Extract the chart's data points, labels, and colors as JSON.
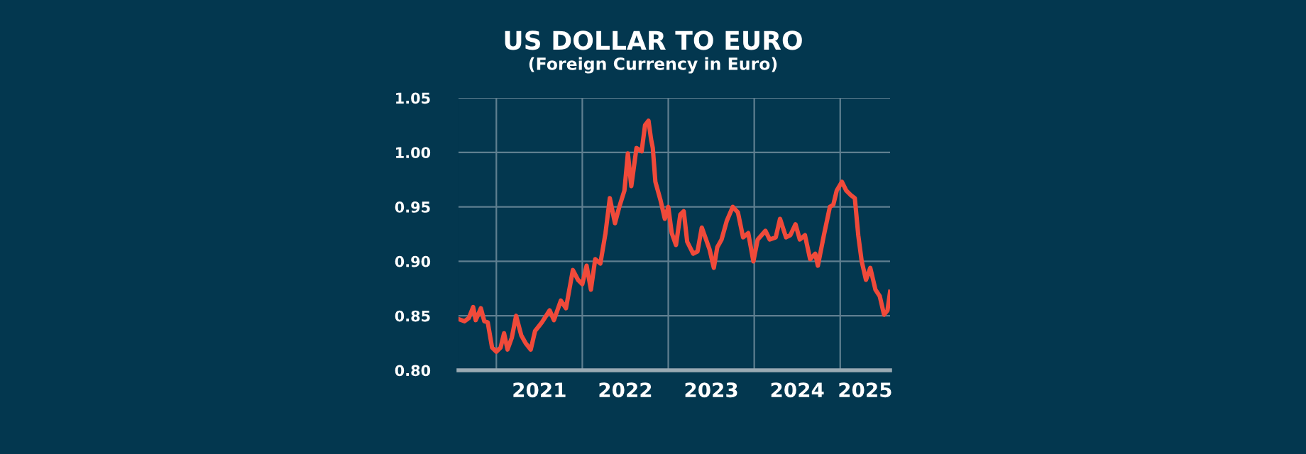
{
  "chart_data": {
    "type": "line",
    "title": "US DOLLAR TO EURO",
    "subtitle": "(Foreign Currency in Euro)",
    "x": [
      2020.56,
      2020.63,
      2020.68,
      2020.73,
      2020.76,
      2020.82,
      2020.86,
      2020.9,
      2020.95,
      2021.0,
      2021.05,
      2021.09,
      2021.13,
      2021.18,
      2021.23,
      2021.29,
      2021.34,
      2021.4,
      2021.45,
      2021.53,
      2021.62,
      2021.67,
      2021.75,
      2021.81,
      2021.89,
      2021.95,
      2022.0,
      2022.05,
      2022.1,
      2022.15,
      2022.21,
      2022.27,
      2022.32,
      2022.38,
      2022.43,
      2022.49,
      2022.53,
      2022.57,
      2022.63,
      2022.69,
      2022.73,
      2022.77,
      2022.8,
      2022.82,
      2022.85,
      2022.91,
      2022.96,
      2023.0,
      2023.04,
      2023.09,
      2023.14,
      2023.18,
      2023.22,
      2023.29,
      2023.34,
      2023.39,
      2023.44,
      2023.48,
      2023.53,
      2023.57,
      2023.62,
      2023.68,
      2023.75,
      2023.81,
      2023.87,
      2023.93,
      2023.99,
      2024.04,
      2024.13,
      2024.18,
      2024.25,
      2024.3,
      2024.37,
      2024.42,
      2024.48,
      2024.53,
      2024.59,
      2024.65,
      2024.71,
      2024.74,
      2024.81,
      2024.88,
      2024.92,
      2024.96,
      2025.02,
      2025.07,
      2025.12,
      2025.17,
      2025.21,
      2025.25,
      2025.3,
      2025.35,
      2025.41,
      2025.46,
      2025.51,
      2025.55,
      2025.58
    ],
    "series": [
      {
        "color": "#f04a3a",
        "values": [
          0.847,
          0.845,
          0.848,
          0.858,
          0.846,
          0.857,
          0.845,
          0.844,
          0.821,
          0.817,
          0.821,
          0.834,
          0.819,
          0.83,
          0.85,
          0.832,
          0.825,
          0.819,
          0.836,
          0.844,
          0.855,
          0.846,
          0.864,
          0.857,
          0.892,
          0.883,
          0.879,
          0.896,
          0.874,
          0.902,
          0.898,
          0.926,
          0.958,
          0.935,
          0.95,
          0.965,
          0.999,
          0.969,
          1.004,
          1.001,
          1.025,
          1.029,
          1.012,
          1.004,
          0.973,
          0.956,
          0.939,
          0.95,
          0.926,
          0.915,
          0.943,
          0.946,
          0.918,
          0.907,
          0.909,
          0.931,
          0.92,
          0.911,
          0.894,
          0.913,
          0.92,
          0.937,
          0.95,
          0.945,
          0.922,
          0.926,
          0.9,
          0.92,
          0.928,
          0.92,
          0.922,
          0.939,
          0.922,
          0.924,
          0.934,
          0.92,
          0.924,
          0.902,
          0.907,
          0.896,
          0.924,
          0.95,
          0.952,
          0.965,
          0.973,
          0.965,
          0.961,
          0.958,
          0.924,
          0.9,
          0.883,
          0.894,
          0.874,
          0.868,
          0.851,
          0.855,
          0.872
        ]
      }
    ],
    "xlim": [
      2020.56,
      2025.58
    ],
    "xticks": [
      {
        "value": 2021,
        "label": null
      },
      {
        "value": 2021.5,
        "label": "2021"
      },
      {
        "value": 2022,
        "label": null
      },
      {
        "value": 2022.5,
        "label": "2022"
      },
      {
        "value": 2023,
        "label": null
      },
      {
        "value": 2023.5,
        "label": "2023"
      },
      {
        "value": 2024,
        "label": null
      },
      {
        "value": 2024.5,
        "label": "2024"
      },
      {
        "value": 2025,
        "label": null
      },
      {
        "value": 2025.29,
        "label": "2025"
      }
    ],
    "ylim": [
      0.8,
      1.05
    ],
    "yticks": [
      {
        "value": 0.8,
        "label": "0.80"
      },
      {
        "value": 0.85,
        "label": "0.85"
      },
      {
        "value": 0.9,
        "label": "0.90"
      },
      {
        "value": 0.95,
        "label": "0.95"
      },
      {
        "value": 1.0,
        "label": "1.00"
      },
      {
        "value": 1.05,
        "label": "1.05"
      }
    ],
    "grid": true,
    "marker": "none",
    "line_style": "solid"
  }
}
